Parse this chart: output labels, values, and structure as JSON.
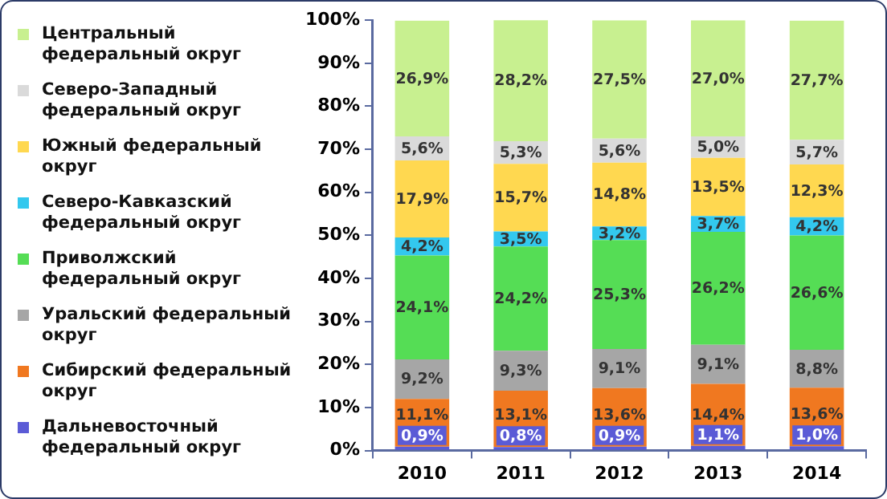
{
  "chart_data": {
    "type": "bar",
    "stacked": true,
    "legend": "left",
    "grid": false,
    "categories": [
      "2010",
      "2011",
      "2012",
      "2013",
      "2014"
    ],
    "ylim": [
      0,
      100
    ],
    "yticks": [
      {
        "value": 0,
        "label": "0%"
      },
      {
        "value": 10,
        "label": "10%"
      },
      {
        "value": 20,
        "label": "20%"
      },
      {
        "value": 30,
        "label": "30%"
      },
      {
        "value": 40,
        "label": "40%"
      },
      {
        "value": 50,
        "label": "50%"
      },
      {
        "value": 60,
        "label": "60%"
      },
      {
        "value": 70,
        "label": "70%"
      },
      {
        "value": 80,
        "label": "80%"
      },
      {
        "value": 90,
        "label": "90%"
      },
      {
        "value": 100,
        "label": "100%"
      }
    ],
    "series": [
      {
        "name": "Дальневосточный федеральный округ",
        "color": "#5b5bd6",
        "values": [
          0.9,
          0.8,
          0.9,
          1.1,
          1.0
        ],
        "value_labels": [
          "0,9%",
          "0,8%",
          "0,9%",
          "1,1%",
          "1,0%"
        ]
      },
      {
        "name": "Сибирский федеральный округ",
        "color": "#f07820",
        "values": [
          11.1,
          13.1,
          13.6,
          14.4,
          13.6
        ],
        "value_labels": [
          "11,1%",
          "13,1%",
          "13,6%",
          "14,4%",
          "13,6%"
        ]
      },
      {
        "name": "Уральский федеральный округ",
        "color": "#a6a6a6",
        "values": [
          9.2,
          9.3,
          9.1,
          9.1,
          8.8
        ],
        "value_labels": [
          "9,2%",
          "9,3%",
          "9,1%",
          "9,1%",
          "8,8%"
        ]
      },
      {
        "name": "Приволжский федеральный округ",
        "color": "#55dd55",
        "values": [
          24.1,
          24.2,
          25.3,
          26.2,
          26.6
        ],
        "value_labels": [
          "24,1%",
          "24,2%",
          "25,3%",
          "26,2%",
          "26,6%"
        ]
      },
      {
        "name": "Северо-Кавказский федеральный округ",
        "color": "#33c8ee",
        "values": [
          4.2,
          3.5,
          3.2,
          3.7,
          4.2
        ],
        "value_labels": [
          "4,2%",
          "3,5%",
          "3,2%",
          "3,7%",
          "4,2%"
        ]
      },
      {
        "name": "Южный федеральный округ",
        "color": "#ffd850",
        "values": [
          17.9,
          15.7,
          14.8,
          13.5,
          12.3
        ],
        "value_labels": [
          "17,9%",
          "15,7%",
          "14,8%",
          "13,5%",
          "12,3%"
        ]
      },
      {
        "name": "Северо-Западный федеральный округ",
        "color": "#dadada",
        "values": [
          5.6,
          5.3,
          5.6,
          5.0,
          5.7
        ],
        "value_labels": [
          "5,6%",
          "5,3%",
          "5,6%",
          "5,0%",
          "5,7%"
        ]
      },
      {
        "name": "Центральный федеральный округ",
        "color": "#c8f090",
        "values": [
          26.9,
          28.2,
          27.5,
          27.0,
          27.7
        ],
        "value_labels": [
          "26,9%",
          "28,2%",
          "27,5%",
          "27,0%",
          "27,7%"
        ]
      }
    ]
  }
}
